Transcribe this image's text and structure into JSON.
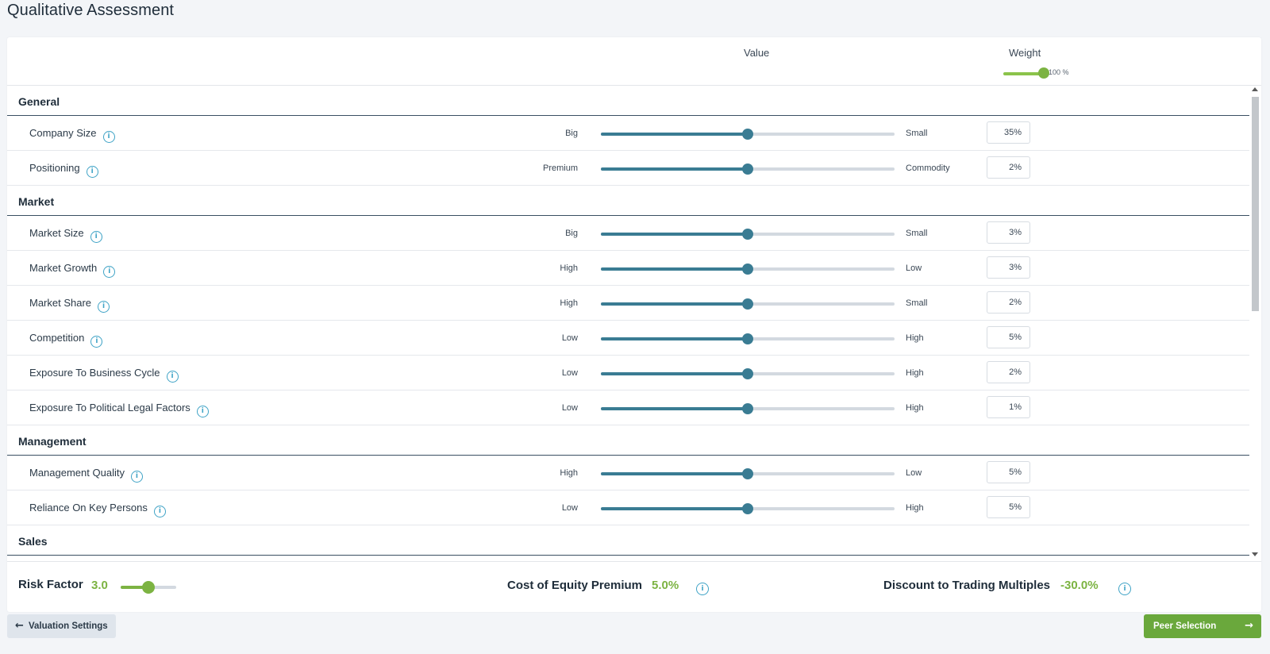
{
  "page": {
    "title": "Qualitative Assessment"
  },
  "columns": {
    "value": "Value",
    "weight": "Weight"
  },
  "master_weight": {
    "label": "100 %",
    "level": 100
  },
  "sections": [
    {
      "title": "General",
      "items": [
        {
          "label": "Company Size",
          "left": "Big",
          "right": "Small",
          "weight": "35%",
          "value": 0.5
        },
        {
          "label": "Positioning",
          "left": "Premium",
          "right": "Commodity",
          "weight": "2%",
          "value": 0.5
        }
      ]
    },
    {
      "title": "Market",
      "items": [
        {
          "label": "Market Size",
          "left": "Big",
          "right": "Small",
          "weight": "3%",
          "value": 0.5
        },
        {
          "label": "Market Growth",
          "left": "High",
          "right": "Low",
          "weight": "3%",
          "value": 0.5
        },
        {
          "label": "Market Share",
          "left": "High",
          "right": "Small",
          "weight": "2%",
          "value": 0.5
        },
        {
          "label": "Competition",
          "left": "Low",
          "right": "High",
          "weight": "5%",
          "value": 0.5
        },
        {
          "label": "Exposure To Business Cycle",
          "left": "Low",
          "right": "High",
          "weight": "2%",
          "value": 0.5
        },
        {
          "label": "Exposure To Political Legal Factors",
          "left": "Low",
          "right": "High",
          "weight": "1%",
          "value": 0.5
        }
      ]
    },
    {
      "title": "Management",
      "items": [
        {
          "label": "Management Quality",
          "left": "High",
          "right": "Low",
          "weight": "5%",
          "value": 0.5
        },
        {
          "label": "Reliance On Key Persons",
          "left": "Low",
          "right": "High",
          "weight": "5%",
          "value": 0.5
        }
      ]
    },
    {
      "title": "Sales",
      "items": []
    }
  ],
  "footer": {
    "risk_label": "Risk Factor",
    "risk_value": "3.0",
    "risk_level": 0.5,
    "coe_label": "Cost of Equity Premium",
    "coe_value": "5.0%",
    "dtm_label": "Discount to Trading Multiples",
    "dtm_value": "-30.0%"
  },
  "nav": {
    "back_label": "Valuation Settings",
    "next_label": "Peer Selection"
  },
  "icons": {
    "info": "info-icon",
    "back": "arrow-left-icon",
    "next": "arrow-right-icon"
  },
  "colors": {
    "accent": "#7cb342",
    "slider": "#3a7c93",
    "next_button": "#6aa83c"
  }
}
